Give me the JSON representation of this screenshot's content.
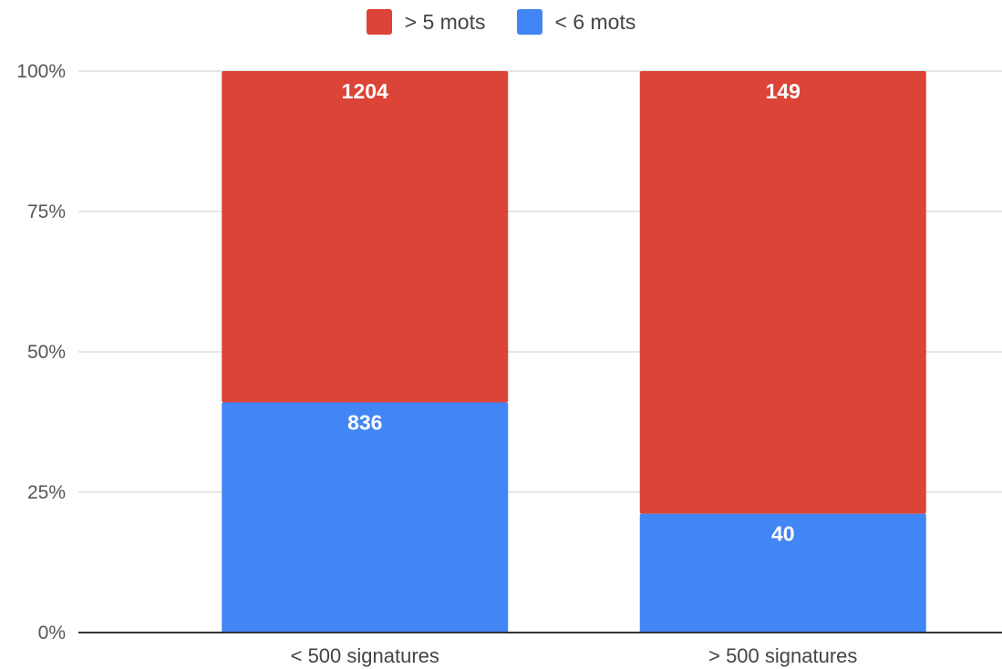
{
  "chart_data": {
    "type": "bar",
    "stacked": "percent",
    "categories": [
      "< 500 signatures",
      "> 500 signatures"
    ],
    "series": [
      {
        "name": "< 6 mots",
        "values": [
          836,
          40
        ],
        "color": "#4285f4"
      },
      {
        "name": "> 5 mots",
        "values": [
          1204,
          149
        ],
        "color": "#db4437"
      }
    ],
    "ylim": [
      0,
      100
    ],
    "yticks": [
      "0%",
      "25%",
      "50%",
      "75%",
      "100%"
    ],
    "legend_order": [
      "> 5 mots",
      "< 6 mots"
    ],
    "legend_position": "top-center",
    "grid": true,
    "title": "",
    "xlabel": "",
    "ylabel": ""
  }
}
